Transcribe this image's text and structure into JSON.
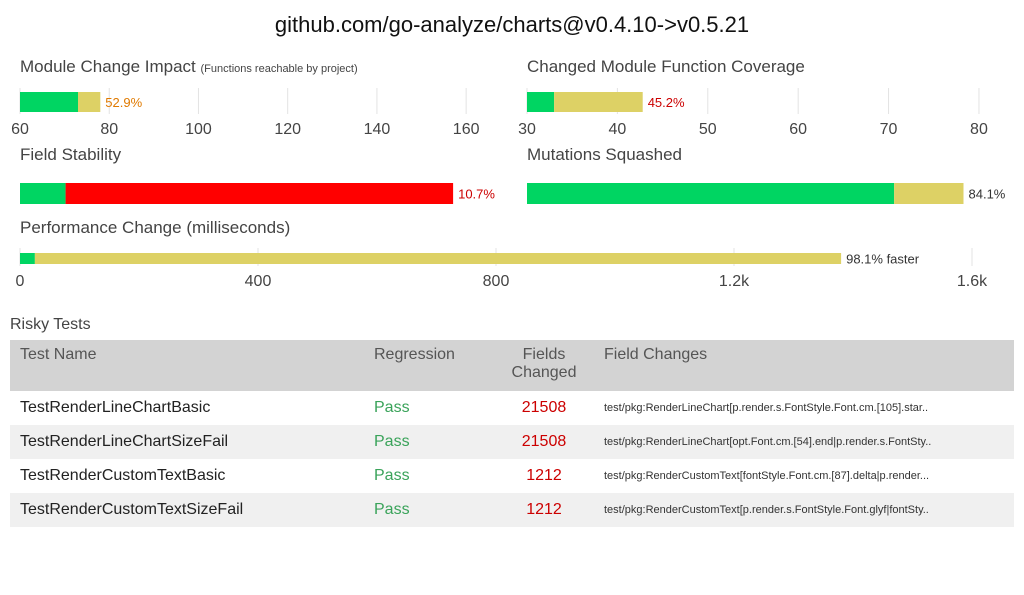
{
  "page": {
    "title": "github.com/go-analyze/charts@v0.4.10->v0.5.21"
  },
  "colors": {
    "good": "#00d562",
    "neutral": "#ddd165",
    "bad": "#ff0000",
    "pass": "#3aa35a",
    "label_orange": "#e07a00",
    "label_red": "#cc0000",
    "label_dark": "#333333"
  },
  "chart_data": [
    {
      "type": "bar",
      "orientation": "horizontal",
      "stacked": true,
      "title": "Module Change Impact",
      "subtitle": "(Functions reachable by project)",
      "xlim": [
        60,
        164
      ],
      "ticks": [
        60,
        80,
        100,
        120,
        140,
        160
      ],
      "tick_labels": [
        "60",
        "80",
        "100",
        "120",
        "140",
        "160"
      ],
      "segments": [
        {
          "color": "good",
          "from": 60,
          "to": 73
        },
        {
          "color": "neutral",
          "from": 73,
          "to": 78
        }
      ],
      "data_label": "52.9%",
      "label_color": "label_orange"
    },
    {
      "type": "bar",
      "orientation": "horizontal",
      "stacked": true,
      "title": "Changed Module Function Coverage",
      "subtitle": "",
      "xlim": [
        30,
        81
      ],
      "ticks": [
        30,
        40,
        50,
        60,
        70,
        80
      ],
      "tick_labels": [
        "30",
        "40",
        "50",
        "60",
        "70",
        "80"
      ],
      "segments": [
        {
          "color": "good",
          "from": 30,
          "to": 33
        },
        {
          "color": "neutral",
          "from": 33,
          "to": 42.8
        }
      ],
      "data_label": "45.2%",
      "label_color": "label_red"
    },
    {
      "type": "bar",
      "orientation": "horizontal",
      "stacked": true,
      "title": "Field Stability",
      "subtitle": "",
      "xlim": [
        0,
        100
      ],
      "ticks": [],
      "tick_labels": [],
      "segments": [
        {
          "color": "good",
          "from": 0,
          "to": 9.4
        },
        {
          "color": "bad",
          "from": 9.4,
          "to": 89.3
        }
      ],
      "data_label": "10.7%",
      "label_color": "label_red"
    },
    {
      "type": "bar",
      "orientation": "horizontal",
      "stacked": true,
      "title": "Mutations Squashed",
      "subtitle": "",
      "xlim": [
        0,
        100
      ],
      "ticks": [],
      "tick_labels": [],
      "segments": [
        {
          "color": "good",
          "from": 0,
          "to": 75.7
        },
        {
          "color": "neutral",
          "from": 75.7,
          "to": 90
        }
      ],
      "data_label": "84.1%",
      "label_color": "label_dark"
    },
    {
      "type": "bar",
      "orientation": "horizontal",
      "stacked": true,
      "title": "Performance Change (milliseconds)",
      "subtitle": "",
      "xlim": [
        0,
        1600
      ],
      "ticks": [
        0,
        400,
        800,
        1200,
        1600
      ],
      "tick_labels": [
        "0",
        "400",
        "800",
        "1.2k",
        "1.6k"
      ],
      "segments": [
        {
          "color": "good",
          "from": 0,
          "to": 25
        },
        {
          "color": "neutral",
          "from": 25,
          "to": 1380
        }
      ],
      "data_label": "98.1% faster",
      "label_color": "label_dark"
    }
  ],
  "risky_tests": {
    "title": "Risky Tests",
    "columns": {
      "name": "Test Name",
      "regression": "Regression",
      "fields_line1": "Fields",
      "fields_line2": "Changed",
      "changes": "Field Changes"
    },
    "rows": [
      {
        "name": "TestRenderLineChartBasic",
        "regression": "Pass",
        "fields": "21508",
        "changes": "test/pkg:RenderLineChart[p.render.s.FontStyle.Font.cm.[105].star.."
      },
      {
        "name": "TestRenderLineChartSizeFail",
        "regression": "Pass",
        "fields": "21508",
        "changes": "test/pkg:RenderLineChart[opt.Font.cm.[54].end|p.render.s.FontSty.."
      },
      {
        "name": "TestRenderCustomTextBasic",
        "regression": "Pass",
        "fields": "1212",
        "changes": "test/pkg:RenderCustomText[fontStyle.Font.cm.[87].delta|p.render..."
      },
      {
        "name": "TestRenderCustomTextSizeFail",
        "regression": "Pass",
        "fields": "1212",
        "changes": "test/pkg:RenderCustomText[p.render.s.FontStyle.Font.glyf|fontSty.."
      }
    ]
  }
}
